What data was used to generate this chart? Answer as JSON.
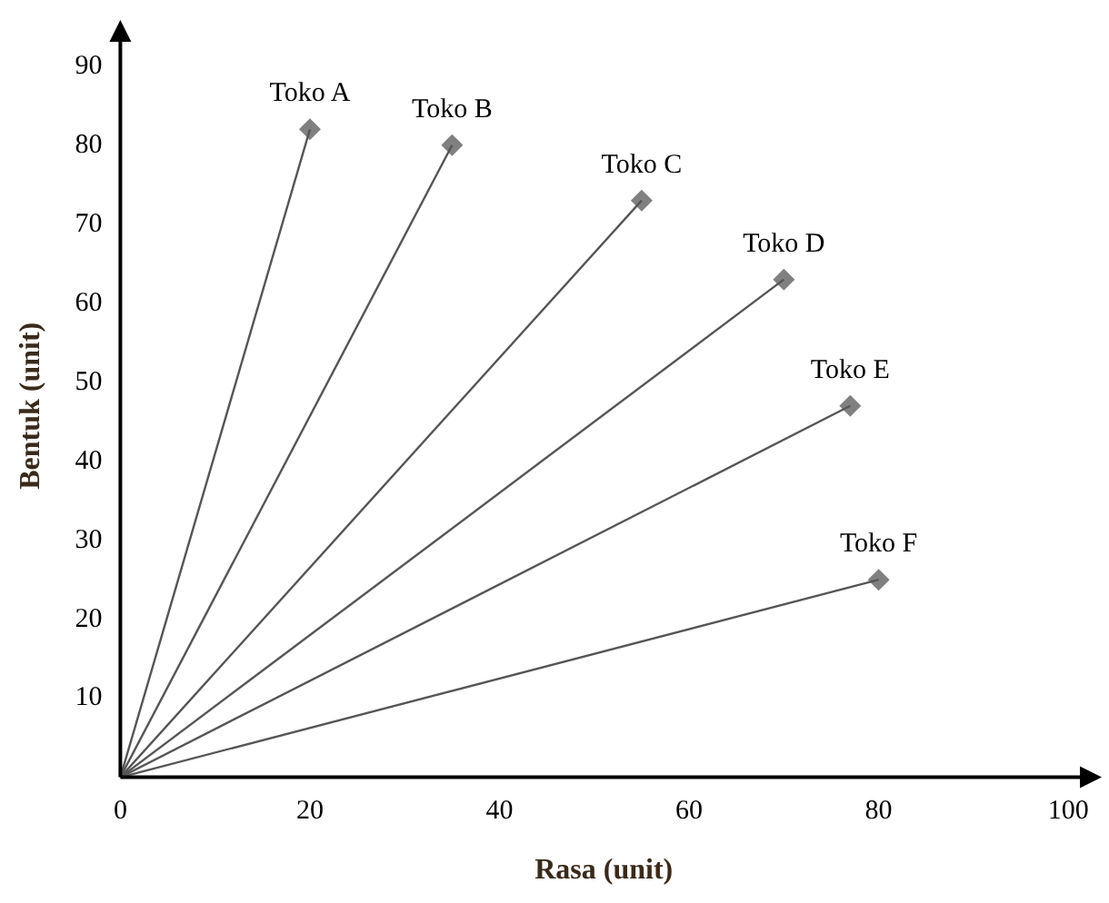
{
  "chart_data": {
    "type": "line",
    "xlabel": "Rasa (unit)",
    "ylabel": "Bentuk (unit)",
    "xlim": [
      0,
      102
    ],
    "ylim": [
      0,
      94
    ],
    "xticks": [
      0,
      20,
      40,
      60,
      80,
      100
    ],
    "yticks": [
      10,
      20,
      30,
      40,
      50,
      60,
      70,
      80,
      90
    ],
    "grid": false,
    "legend": false,
    "series": [
      {
        "color": "#555555",
        "marker": "none",
        "x": [
          0,
          20
        ],
        "values": [
          0,
          82
        ]
      },
      {
        "color": "#555555",
        "marker": "none",
        "x": [
          0,
          35
        ],
        "values": [
          0,
          80
        ]
      },
      {
        "color": "#555555",
        "marker": "none",
        "x": [
          0,
          55
        ],
        "values": [
          0,
          73
        ]
      },
      {
        "color": "#555555",
        "marker": "none",
        "x": [
          0,
          70
        ],
        "values": [
          0,
          63
        ]
      },
      {
        "color": "#555555",
        "marker": "none",
        "x": [
          0,
          77
        ],
        "values": [
          0,
          47
        ]
      },
      {
        "color": "#555555",
        "marker": "none",
        "x": [
          0,
          80
        ],
        "values": [
          0,
          25
        ]
      },
      {
        "type": "scatter",
        "color": "#808080",
        "marker": "diamond",
        "x": [
          20,
          35,
          55,
          70,
          77,
          80
        ],
        "values": [
          82,
          80,
          73,
          63,
          47,
          25
        ]
      }
    ],
    "annotations": [
      {
        "text": "Toko A",
        "x": 20,
        "y": 82
      },
      {
        "text": "Toko B",
        "x": 35,
        "y": 80
      },
      {
        "text": "Toko C",
        "x": 55,
        "y": 73
      },
      {
        "text": "Toko D",
        "x": 70,
        "y": 63
      },
      {
        "text": "Toko E",
        "x": 77,
        "y": 47
      },
      {
        "text": "Toko F",
        "x": 80,
        "y": 25
      }
    ]
  }
}
